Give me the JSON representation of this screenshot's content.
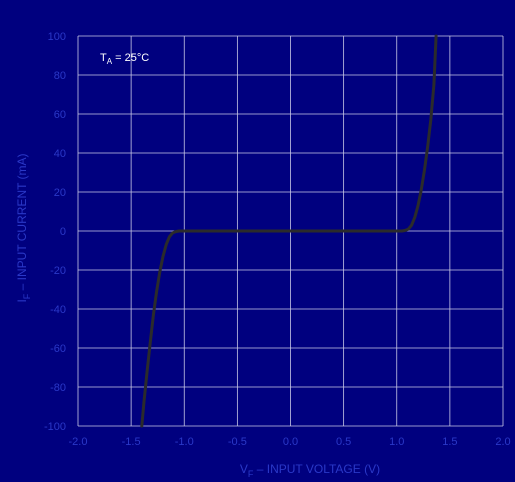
{
  "colors": {
    "background": "#00007f",
    "grid": "#c8c8e6",
    "curve": "#2b2b2b",
    "label": "#2a38c8",
    "annotation": "#ffffff"
  },
  "chart_data": {
    "type": "line",
    "title": "",
    "annotation": {
      "main": "T",
      "sub": "A",
      "rest": " = 25°C"
    },
    "xlabel": {
      "main": "V",
      "sub": "F",
      "rest": " – INPUT VOLTAGE (V)"
    },
    "ylabel": {
      "main": "I",
      "sub": "F",
      "rest": " – INPUT CURRENT (mA)"
    },
    "xlim": [
      -2.0,
      2.0
    ],
    "ylim": [
      -100,
      100
    ],
    "x_ticks": [
      "-2.0",
      "-1.5",
      "-1.0",
      "-0.5",
      "0.0",
      "0.5",
      "1.0",
      "1.5",
      "2.0"
    ],
    "y_ticks": [
      "100",
      "80",
      "60",
      "40",
      "20",
      "0",
      "-20",
      "-40",
      "-60",
      "-80",
      "-100"
    ],
    "grid": true,
    "series": [
      {
        "x": [
          -1.4,
          -1.38,
          -1.35,
          -1.32,
          -1.29,
          -1.26,
          -1.23,
          -1.2,
          -1.17,
          -1.14,
          -1.11,
          -1.08,
          -1.05,
          -1.0,
          -0.5,
          0.0,
          0.5,
          1.0,
          1.05,
          1.08,
          1.11,
          1.14,
          1.17,
          1.2,
          1.23,
          1.26,
          1.29,
          1.32,
          1.35,
          1.37
        ],
        "y": [
          -100,
          -88,
          -72,
          -57,
          -43,
          -31,
          -21,
          -13,
          -7,
          -3,
          -1,
          -0.3,
          0,
          0,
          0,
          0,
          0,
          0,
          0,
          0.3,
          1,
          3,
          7,
          13,
          21,
          31,
          43,
          57,
          75,
          100
        ]
      }
    ]
  }
}
